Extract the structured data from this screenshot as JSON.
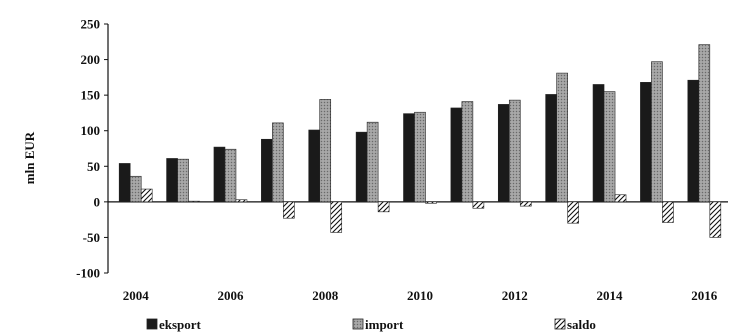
{
  "chart_data": {
    "type": "bar",
    "ylabel": "mln EUR",
    "xlabel": "",
    "ylim": [
      -100,
      250
    ],
    "yticks": [
      -100,
      -50,
      0,
      50,
      100,
      150,
      200,
      250
    ],
    "x": [
      2004,
      2005,
      2006,
      2007,
      2008,
      2009,
      2010,
      2011,
      2012,
      2013,
      2014,
      2015,
      2016
    ],
    "xtick_labels": [
      "2004",
      "2006",
      "2008",
      "2010",
      "2012",
      "2014",
      "2016"
    ],
    "legend_position": "bottom",
    "grid": false,
    "series": [
      {
        "name": "eksport",
        "color": "#1a1a1a",
        "pattern": "solid",
        "values": [
          54,
          61,
          77,
          88,
          101,
          98,
          124,
          132,
          137,
          151,
          165,
          168,
          171
        ]
      },
      {
        "name": "import",
        "color": "#9a9a9a",
        "pattern": "dotted-gray",
        "values": [
          36,
          60,
          74,
          111,
          144,
          112,
          126,
          141,
          143,
          181,
          155,
          197,
          221
        ]
      },
      {
        "name": "saldo",
        "color": "#ffffff",
        "pattern": "hatched",
        "values": [
          18,
          1,
          3,
          -23,
          -43,
          -14,
          -2,
          -9,
          -6,
          -30,
          10,
          -29,
          -50
        ]
      }
    ]
  }
}
